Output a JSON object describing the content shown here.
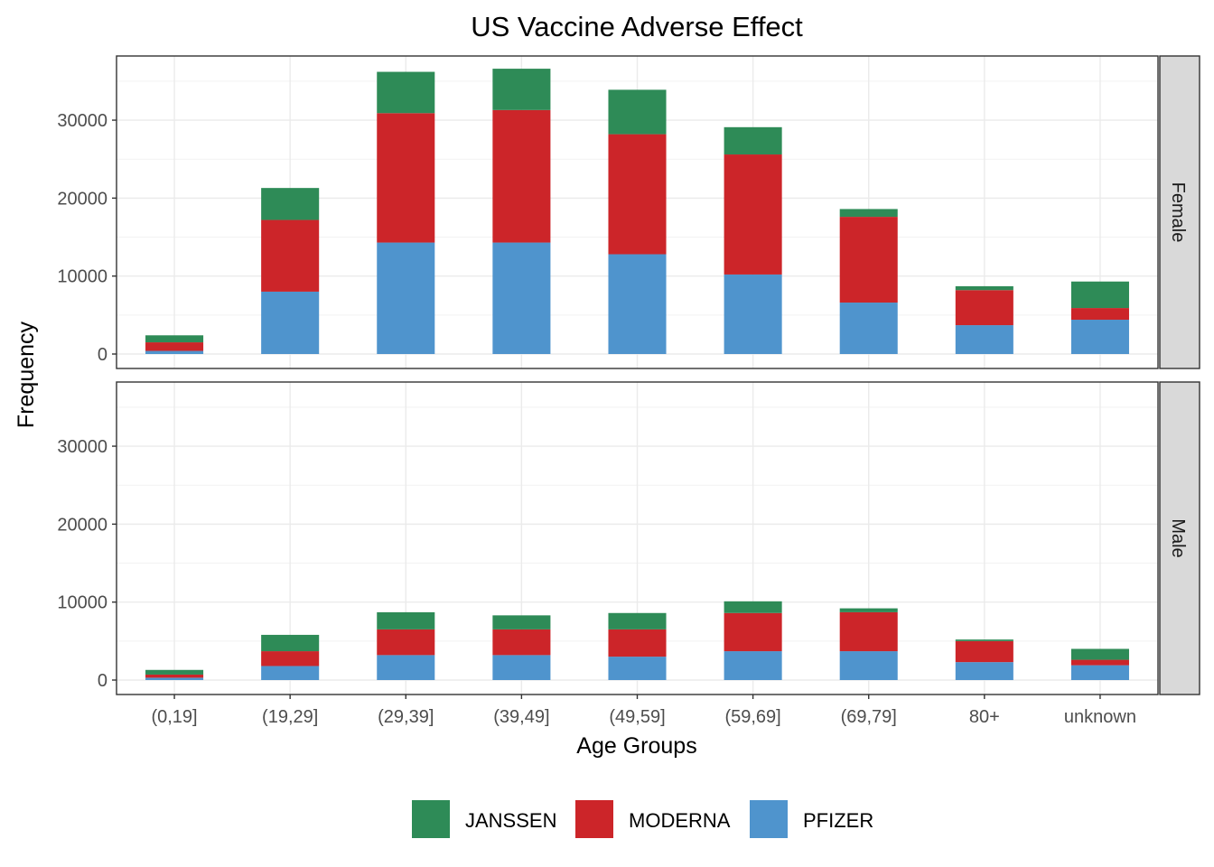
{
  "chart_data": {
    "type": "bar",
    "stacked": true,
    "title": "US Vaccine Adverse Effect",
    "xlabel": "Age Groups",
    "ylabel": "Frequency",
    "categories": [
      "(0,19]",
      "(19,29]",
      "(29,39]",
      "(39,49]",
      "(49,59]",
      "(59,69]",
      "(69,79]",
      "80+",
      "unknown"
    ],
    "ylim": [
      0,
      38000
    ],
    "yticks": [
      0,
      10000,
      20000,
      30000
    ],
    "grid": true,
    "legend_position": "bottom",
    "legend": [
      "JANSSEN",
      "MODERNA",
      "PFIZER"
    ],
    "colors": {
      "JANSSEN": "#2e8b57",
      "MODERNA": "#cc2529",
      "PFIZER": "#4f94cd"
    },
    "stack_order_bottom_to_top": [
      "PFIZER",
      "MODERNA",
      "JANSSEN"
    ],
    "panels": [
      {
        "label": "Female",
        "series": [
          {
            "name": "PFIZER",
            "values": [
              400,
              8000,
              14300,
              14300,
              12800,
              10200,
              6600,
              3700,
              4400
            ]
          },
          {
            "name": "MODERNA",
            "values": [
              1100,
              9200,
              16600,
              17000,
              15400,
              15400,
              11000,
              4500,
              1500
            ]
          },
          {
            "name": "JANSSEN",
            "values": [
              900,
              4100,
              5300,
              5300,
              5700,
              3500,
              1000,
              500,
              3400
            ]
          }
        ]
      },
      {
        "label": "Male",
        "series": [
          {
            "name": "PFIZER",
            "values": [
              300,
              1800,
              3200,
              3200,
              3000,
              3700,
              3700,
              2300,
              1900
            ]
          },
          {
            "name": "MODERNA",
            "values": [
              400,
              1900,
              3300,
              3300,
              3500,
              4900,
              5000,
              2700,
              700
            ]
          },
          {
            "name": "JANSSEN",
            "values": [
              600,
              2100,
              2200,
              1800,
              2100,
              1500,
              500,
              200,
              1400
            ]
          }
        ]
      }
    ]
  }
}
